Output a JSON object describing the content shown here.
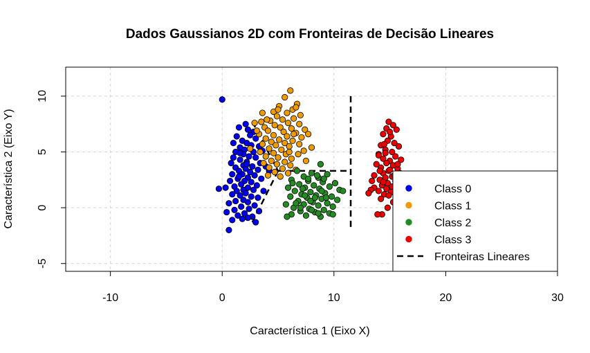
{
  "chart_data": {
    "type": "scatter",
    "title": "Dados Gaussianos 2D com Fronteiras de Decisão Lineares",
    "xlabel": "Característica 1 (Eixo X)",
    "ylabel": "Característica 2 (Eixo Y)",
    "xlim": [
      -14,
      30
    ],
    "ylim": [
      -5.7,
      12.6
    ],
    "xticks": [
      -10,
      0,
      10,
      20,
      30
    ],
    "yticks": [
      -5,
      0,
      5,
      10
    ],
    "grid": true,
    "legend_position": "bottom-right",
    "series": [
      {
        "name": "Class 0",
        "color": "#0000ee",
        "points": [
          [
            0.0,
            9.7
          ],
          [
            2.1,
            7.5
          ],
          [
            1.5,
            7.2
          ],
          [
            2.3,
            7.0
          ],
          [
            2.8,
            6.8
          ],
          [
            1.3,
            6.4
          ],
          [
            2.5,
            6.5
          ],
          [
            3.0,
            6.2
          ],
          [
            1.8,
            6.0
          ],
          [
            2.2,
            5.8
          ],
          [
            1.0,
            5.8
          ],
          [
            2.6,
            5.6
          ],
          [
            1.6,
            5.4
          ],
          [
            3.3,
            5.5
          ],
          [
            2.0,
            5.2
          ],
          [
            1.2,
            5.0
          ],
          [
            2.8,
            5.0
          ],
          [
            3.6,
            5.1
          ],
          [
            1.9,
            4.8
          ],
          [
            2.4,
            4.6
          ],
          [
            1.0,
            4.5
          ],
          [
            3.0,
            4.5
          ],
          [
            1.6,
            4.3
          ],
          [
            2.2,
            4.1
          ],
          [
            0.8,
            4.0
          ],
          [
            3.4,
            4.0
          ],
          [
            1.9,
            3.8
          ],
          [
            2.7,
            3.7
          ],
          [
            1.2,
            3.6
          ],
          [
            3.9,
            3.7
          ],
          [
            2.1,
            3.5
          ],
          [
            3.2,
            3.4
          ],
          [
            1.5,
            3.3
          ],
          [
            2.5,
            3.2
          ],
          [
            4.2,
            3.3
          ],
          [
            1.8,
            3.0
          ],
          [
            0.9,
            3.0
          ],
          [
            2.9,
            2.9
          ],
          [
            2.3,
            2.7
          ],
          [
            1.4,
            2.6
          ],
          [
            3.5,
            2.6
          ],
          [
            2.0,
            2.4
          ],
          [
            0.7,
            2.4
          ],
          [
            2.6,
            2.3
          ],
          [
            1.7,
            2.1
          ],
          [
            3.1,
            2.0
          ],
          [
            1.1,
            1.9
          ],
          [
            2.3,
            1.8
          ],
          [
            0.3,
            1.8
          ],
          [
            1.9,
            1.6
          ],
          [
            2.8,
            1.6
          ],
          [
            1.3,
            1.5
          ],
          [
            3.7,
            1.5
          ],
          [
            2.1,
            1.3
          ],
          [
            0.9,
            1.2
          ],
          [
            1.6,
            1.1
          ],
          [
            2.6,
            1.0
          ],
          [
            3.2,
            0.9
          ],
          [
            1.9,
            0.7
          ],
          [
            1.2,
            0.6
          ],
          [
            2.3,
            0.5
          ],
          [
            0.6,
            0.4
          ],
          [
            2.9,
            0.2
          ],
          [
            1.7,
            0.1
          ],
          [
            2.4,
            -0.1
          ],
          [
            1.1,
            -0.2
          ],
          [
            3.3,
            -0.3
          ],
          [
            0.4,
            -0.4
          ],
          [
            2.0,
            -0.5
          ],
          [
            1.4,
            -0.7
          ],
          [
            2.7,
            -0.8
          ],
          [
            1.8,
            -1.0
          ],
          [
            0.9,
            -1.1
          ],
          [
            2.3,
            -0.9
          ],
          [
            3.0,
            -1.3
          ],
          [
            0.6,
            -2.0
          ],
          [
            -0.3,
            1.7
          ],
          [
            1.5,
            2.8
          ],
          [
            2.2,
            3.9
          ],
          [
            1.6,
            4.9
          ]
        ]
      },
      {
        "name": "Class 1",
        "color": "#ee9a00",
        "points": [
          [
            6.1,
            10.5
          ],
          [
            5.6,
            9.9
          ],
          [
            6.7,
            9.3
          ],
          [
            5.1,
            9.1
          ],
          [
            6.3,
            8.8
          ],
          [
            4.6,
            8.6
          ],
          [
            5.8,
            8.5
          ],
          [
            7.0,
            8.3
          ],
          [
            3.6,
            8.5
          ],
          [
            4.9,
            8.2
          ],
          [
            6.4,
            8.0
          ],
          [
            5.4,
            7.9
          ],
          [
            4.3,
            7.8
          ],
          [
            3.5,
            7.7
          ],
          [
            2.9,
            7.6
          ],
          [
            5.9,
            7.6
          ],
          [
            6.9,
            7.5
          ],
          [
            4.7,
            7.4
          ],
          [
            3.8,
            7.2
          ],
          [
            5.2,
            7.2
          ],
          [
            6.2,
            7.1
          ],
          [
            7.4,
            7.0
          ],
          [
            4.1,
            6.9
          ],
          [
            5.5,
            6.8
          ],
          [
            6.6,
            6.7
          ],
          [
            3.3,
            6.6
          ],
          [
            4.6,
            6.5
          ],
          [
            5.8,
            6.4
          ],
          [
            7.1,
            6.3
          ],
          [
            3.9,
            6.2
          ],
          [
            5.1,
            6.1
          ],
          [
            6.3,
            6.0
          ],
          [
            4.4,
            5.9
          ],
          [
            5.6,
            5.8
          ],
          [
            6.9,
            5.7
          ],
          [
            3.6,
            5.7
          ],
          [
            4.8,
            5.6
          ],
          [
            6.0,
            5.5
          ],
          [
            8.0,
            5.4
          ],
          [
            4.2,
            5.3
          ],
          [
            5.3,
            5.2
          ],
          [
            7.3,
            5.1
          ],
          [
            3.4,
            5.0
          ],
          [
            4.6,
            4.9
          ],
          [
            5.7,
            4.8
          ],
          [
            6.8,
            4.8
          ],
          [
            3.9,
            4.6
          ],
          [
            5.0,
            4.5
          ],
          [
            6.2,
            4.4
          ],
          [
            4.4,
            4.2
          ],
          [
            5.6,
            4.1
          ],
          [
            7.5,
            4.2
          ],
          [
            3.7,
            4.0
          ],
          [
            4.9,
            3.9
          ],
          [
            6.1,
            3.8
          ],
          [
            4.2,
            3.6
          ],
          [
            5.4,
            3.5
          ],
          [
            6.6,
            3.4
          ],
          [
            4.7,
            3.2
          ],
          [
            5.9,
            3.1
          ],
          [
            4.1,
            2.9
          ],
          [
            5.2,
            2.8
          ],
          [
            6.4,
            6.6
          ],
          [
            6.0,
            5.0
          ],
          [
            3.1,
            6.9
          ],
          [
            2.5,
            5.3
          ],
          [
            7.7,
            6.6
          ],
          [
            5.0,
            8.8
          ],
          [
            4.0,
            7.9
          ],
          [
            6.6,
            9.0
          ]
        ]
      },
      {
        "name": "Class 2",
        "color": "#228b22",
        "points": [
          [
            8.8,
            3.9
          ],
          [
            6.7,
            3.3
          ],
          [
            8.0,
            3.1
          ],
          [
            9.4,
            3.0
          ],
          [
            7.3,
            2.8
          ],
          [
            8.6,
            2.7
          ],
          [
            6.2,
            2.5
          ],
          [
            7.7,
            2.4
          ],
          [
            9.0,
            2.3
          ],
          [
            10.1,
            2.2
          ],
          [
            6.9,
            2.1
          ],
          [
            8.2,
            2.0
          ],
          [
            9.6,
            1.9
          ],
          [
            7.4,
            1.8
          ],
          [
            5.9,
            1.8
          ],
          [
            8.7,
            1.7
          ],
          [
            10.5,
            1.6
          ],
          [
            6.5,
            1.5
          ],
          [
            7.9,
            1.4
          ],
          [
            9.2,
            1.3
          ],
          [
            7.1,
            1.2
          ],
          [
            8.4,
            1.1
          ],
          [
            9.8,
            1.0
          ],
          [
            6.1,
            1.0
          ],
          [
            7.6,
            0.9
          ],
          [
            8.9,
            0.8
          ],
          [
            10.3,
            0.7
          ],
          [
            6.8,
            0.6
          ],
          [
            8.1,
            0.5
          ],
          [
            9.4,
            0.4
          ],
          [
            7.3,
            0.3
          ],
          [
            5.7,
            0.3
          ],
          [
            8.6,
            0.2
          ],
          [
            9.9,
            0.1
          ],
          [
            6.4,
            0.0
          ],
          [
            7.8,
            -0.1
          ],
          [
            9.1,
            -0.2
          ],
          [
            7.0,
            -0.3
          ],
          [
            8.3,
            -0.4
          ],
          [
            9.6,
            -0.5
          ],
          [
            6.2,
            -0.6
          ],
          [
            7.5,
            -0.7
          ],
          [
            8.8,
            -0.8
          ],
          [
            5.8,
            -0.8
          ],
          [
            7.2,
            1.7
          ],
          [
            8.5,
            2.9
          ],
          [
            9.3,
            0.9
          ],
          [
            6.6,
            0.4
          ],
          [
            10.8,
            1.5
          ],
          [
            8.0,
            -0.2
          ],
          [
            7.7,
            2.6
          ],
          [
            8.9,
            1.5
          ],
          [
            7.0,
            0.0
          ],
          [
            9.9,
            -0.6
          ],
          [
            8.3,
            0.9
          ],
          [
            6.3,
            2.2
          ],
          [
            7.9,
            0.6
          ],
          [
            9.1,
            2.6
          ],
          [
            8.6,
            -0.5
          ],
          [
            7.4,
            1.1
          ]
        ]
      },
      {
        "name": "Class 3",
        "color": "#ee0000",
        "points": [
          [
            14.9,
            7.7
          ],
          [
            15.3,
            7.4
          ],
          [
            14.7,
            7.1
          ],
          [
            15.6,
            7.0
          ],
          [
            14.4,
            6.6
          ],
          [
            15.1,
            6.4
          ],
          [
            14.8,
            6.0
          ],
          [
            15.4,
            5.8
          ],
          [
            14.2,
            5.6
          ],
          [
            15.8,
            5.5
          ],
          [
            14.6,
            5.2
          ],
          [
            15.2,
            5.0
          ],
          [
            14.0,
            4.8
          ],
          [
            15.5,
            4.6
          ],
          [
            14.4,
            4.4
          ],
          [
            15.0,
            4.2
          ],
          [
            16.0,
            4.3
          ],
          [
            14.7,
            4.0
          ],
          [
            13.8,
            3.9
          ],
          [
            15.3,
            3.8
          ],
          [
            14.2,
            3.6
          ],
          [
            15.7,
            3.5
          ],
          [
            14.9,
            3.3
          ],
          [
            14.4,
            3.1
          ],
          [
            15.9,
            3.1
          ],
          [
            13.6,
            2.9
          ],
          [
            15.2,
            2.8
          ],
          [
            14.6,
            2.7
          ],
          [
            14.1,
            2.5
          ],
          [
            15.5,
            2.4
          ],
          [
            13.4,
            2.4
          ],
          [
            14.8,
            2.2
          ],
          [
            15.9,
            2.1
          ],
          [
            14.3,
            2.0
          ],
          [
            15.2,
            1.9
          ],
          [
            13.6,
            1.8
          ],
          [
            14.7,
            1.7
          ],
          [
            15.6,
            1.6
          ],
          [
            14.0,
            1.5
          ],
          [
            15.1,
            1.4
          ],
          [
            13.3,
            1.6
          ],
          [
            14.5,
            1.2
          ],
          [
            15.8,
            1.0
          ],
          [
            14.2,
            0.8
          ],
          [
            15.3,
            0.5
          ],
          [
            14.8,
            0.0
          ],
          [
            14.3,
            -0.6
          ],
          [
            13.9,
            -0.6
          ],
          [
            15.6,
            -0.1
          ],
          [
            14.0,
            4.7
          ],
          [
            15.0,
            3.4
          ],
          [
            14.5,
            5.7
          ],
          [
            15.4,
            2.9
          ],
          [
            14.1,
            3.3
          ],
          [
            13.1,
            1.3
          ],
          [
            15.0,
            6.8
          ],
          [
            14.6,
            4.9
          ],
          [
            15.7,
            3.9
          ],
          [
            14.9,
            1.1
          ],
          [
            14.4,
            2.3
          ]
        ]
      }
    ],
    "boundaries": [
      {
        "name": "Fronteiras Lineares",
        "color": "#000000",
        "style": "dashed",
        "segments": [
          [
            [
              2.7,
              7.7
            ],
            [
              5.0,
              3.3
            ]
          ],
          [
            [
              5.0,
              3.3
            ],
            [
              11.5,
              3.3
            ]
          ],
          [
            [
              5.0,
              3.3
            ],
            [
              2.7,
              -1.3
            ]
          ],
          [
            [
              11.5,
              10.0
            ],
            [
              11.5,
              -2.0
            ]
          ]
        ]
      }
    ]
  }
}
